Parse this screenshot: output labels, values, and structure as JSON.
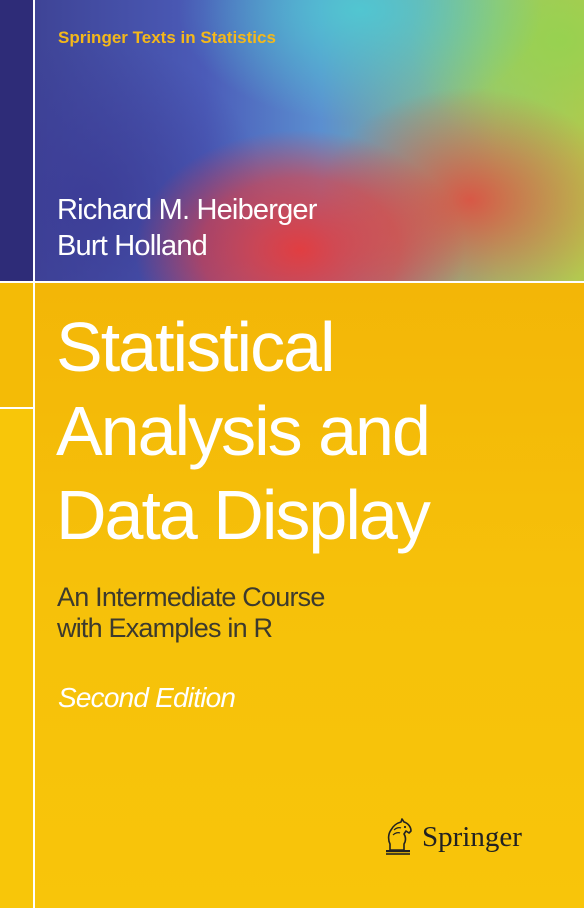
{
  "series": "Springer Texts in Statistics",
  "authors": [
    "Richard M. Heiberger",
    "Burt Holland"
  ],
  "title_lines": [
    "Statistical",
    "Analysis and",
    "Data Display"
  ],
  "subtitle_lines": [
    "An Intermediate Course",
    "with Examples in R"
  ],
  "edition": "Second Edition",
  "publisher": {
    "name": "Springer",
    "logo_icon": "springer-horse-icon"
  },
  "colors": {
    "cover_yellow": "#f6c10a",
    "series_text": "#f4b81a",
    "subtitle_text": "#3c3a2e",
    "accent_red": "#e83a3a",
    "accent_blue": "#3c3f8f"
  }
}
